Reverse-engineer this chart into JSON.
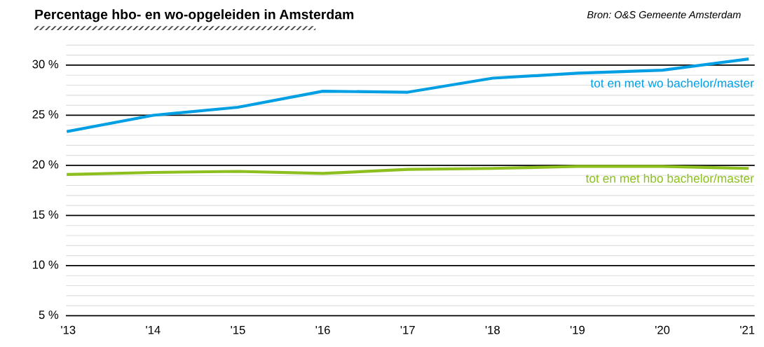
{
  "chart_data": {
    "type": "line",
    "title": "Percentage hbo- en wo-opgeleiden in Amsterdam",
    "annotations": [
      "Bron: O&S Gemeente Amsterdam"
    ],
    "categories": [
      "'13",
      "'14",
      "'15",
      "'16",
      "'17",
      "'18",
      "'19",
      "'20",
      "'21"
    ],
    "series": [
      {
        "name": "tot en met wo bachelor/master",
        "color": "#009fe3",
        "values": [
          23.4,
          25.0,
          25.8,
          27.4,
          27.3,
          28.7,
          29.2,
          29.5,
          30.6
        ]
      },
      {
        "name": "tot en met hbo bachelor/master",
        "color": "#8dbf1f",
        "values": [
          19.1,
          19.3,
          19.4,
          19.2,
          19.6,
          19.7,
          19.9,
          19.9,
          19.7
        ]
      }
    ],
    "ylim": [
      5,
      32
    ],
    "yticks": [
      {
        "value": 5,
        "label": "5 %"
      },
      {
        "value": 6,
        "label": null
      },
      {
        "value": 7,
        "label": null
      },
      {
        "value": 8,
        "label": null
      },
      {
        "value": 9,
        "label": null
      },
      {
        "value": 10,
        "label": "10 %"
      },
      {
        "value": 11,
        "label": null
      },
      {
        "value": 12,
        "label": null
      },
      {
        "value": 13,
        "label": null
      },
      {
        "value": 14,
        "label": null
      },
      {
        "value": 15,
        "label": "15 %"
      },
      {
        "value": 16,
        "label": null
      },
      {
        "value": 17,
        "label": null
      },
      {
        "value": 18,
        "label": null
      },
      {
        "value": 19,
        "label": null
      },
      {
        "value": 20,
        "label": "20 %"
      },
      {
        "value": 21,
        "label": null
      },
      {
        "value": 22,
        "label": null
      },
      {
        "value": 23,
        "label": null
      },
      {
        "value": 24,
        "label": null
      },
      {
        "value": 25,
        "label": "25 %"
      },
      {
        "value": 26,
        "label": null
      },
      {
        "value": 27,
        "label": null
      },
      {
        "value": 28,
        "label": null
      },
      {
        "value": 29,
        "label": null
      },
      {
        "value": 30,
        "label": "30 %"
      },
      {
        "value": 31,
        "label": null
      },
      {
        "value": 32,
        "label": null
      }
    ],
    "grid": "y",
    "legend": false,
    "marker": "none",
    "line_style": "solid"
  }
}
